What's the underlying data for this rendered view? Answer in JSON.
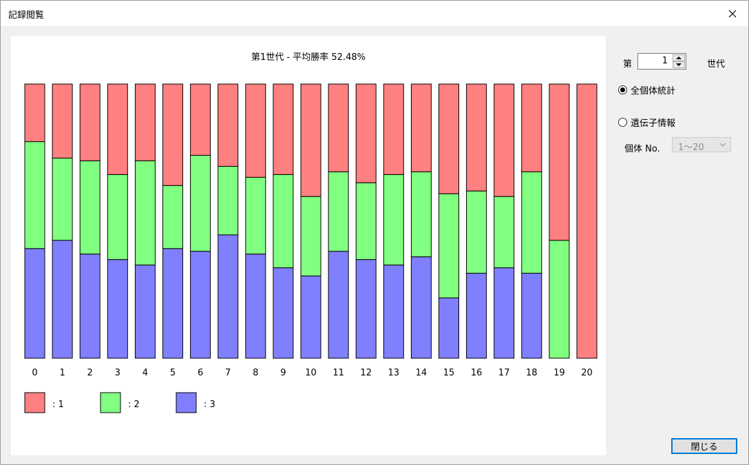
{
  "window": {
    "title": "記録閲覧"
  },
  "controls": {
    "generation_prefix": "第",
    "generation_value": "1",
    "generation_suffix": "世代",
    "radio_all_label": "全個体統計",
    "radio_gene_label": "遺伝子情報",
    "individual_label": "個体 No.",
    "individual_selected": "1〜20",
    "close_button_label": "閉じる"
  },
  "chart_data": {
    "type": "bar",
    "stacked": true,
    "normalized": true,
    "title": "第1世代 - 平均勝率 52.48%",
    "categories": [
      "0",
      "1",
      "2",
      "3",
      "4",
      "5",
      "6",
      "7",
      "8",
      "9",
      "10",
      "11",
      "12",
      "13",
      "14",
      "15",
      "16",
      "17",
      "18",
      "19",
      "20"
    ],
    "series": [
      {
        "name": ": 3",
        "color": "#8080ff",
        "values": [
          0.4,
          0.43,
          0.38,
          0.36,
          0.34,
          0.4,
          0.39,
          0.45,
          0.38,
          0.33,
          0.3,
          0.39,
          0.36,
          0.34,
          0.37,
          0.22,
          0.31,
          0.33,
          0.31,
          0.0,
          0.0
        ]
      },
      {
        "name": ": 2",
        "color": "#80ff80",
        "values": [
          0.39,
          0.3,
          0.34,
          0.31,
          0.38,
          0.23,
          0.35,
          0.25,
          0.28,
          0.34,
          0.29,
          0.29,
          0.28,
          0.33,
          0.31,
          0.38,
          0.3,
          0.26,
          0.37,
          0.43,
          0.0
        ]
      },
      {
        "name": ": 1",
        "color": "#ff8080",
        "values": [
          0.21,
          0.27,
          0.28,
          0.33,
          0.28,
          0.37,
          0.26,
          0.3,
          0.34,
          0.33,
          0.41,
          0.32,
          0.36,
          0.33,
          0.32,
          0.4,
          0.39,
          0.41,
          0.32,
          0.57,
          1.0
        ]
      }
    ],
    "legend": [
      "1",
      "2",
      "3"
    ],
    "legend_labels": [
      ": 1",
      ": 2",
      ": 3"
    ],
    "legend_colors": [
      "#ff8080",
      "#80ff80",
      "#8080ff"
    ],
    "legend_position": "bottom-left",
    "ylim": [
      0,
      1
    ],
    "grid": false
  }
}
